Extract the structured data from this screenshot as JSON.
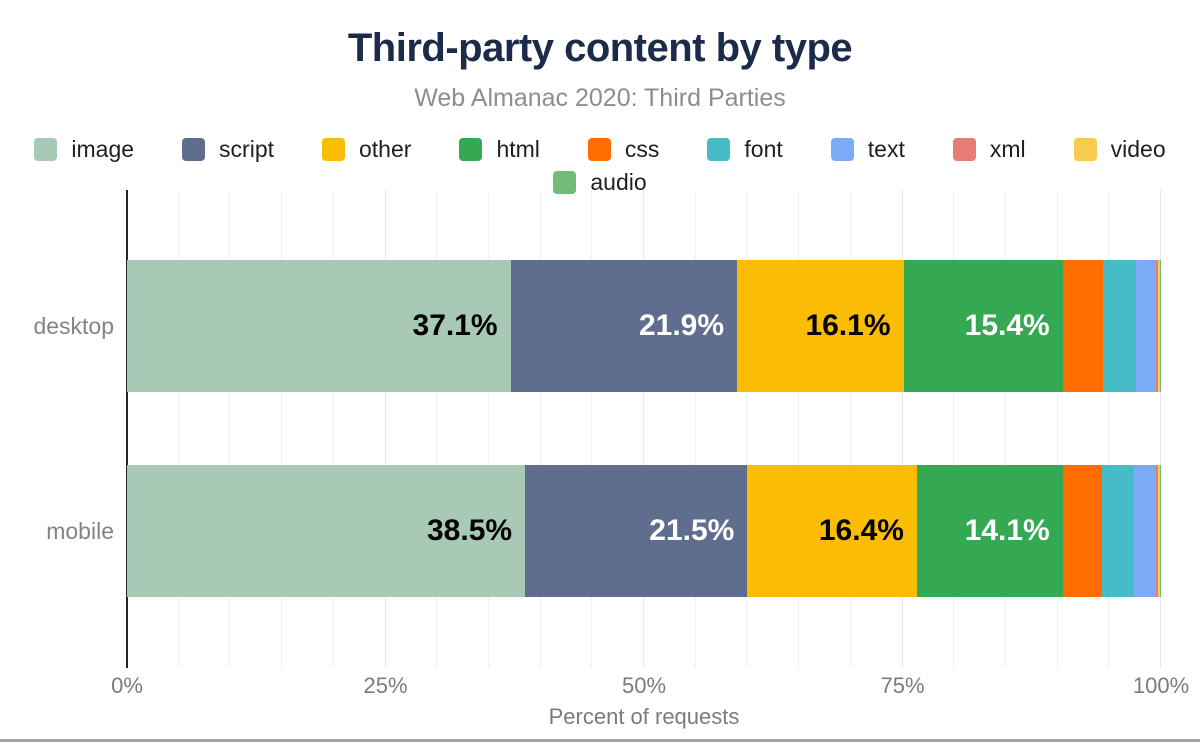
{
  "header": {
    "title": "Third-party content by type",
    "subtitle": "Web Almanac 2020: Third Parties"
  },
  "legend": {
    "rows": [
      [
        "image",
        "script",
        "other",
        "html",
        "css",
        "font",
        "text",
        "xml",
        "video"
      ],
      [
        "audio"
      ]
    ]
  },
  "chart_data": {
    "type": "bar",
    "orientation": "horizontal",
    "stacked": true,
    "title": "Third-party content by type",
    "subtitle": "Web Almanac 2020: Third Parties",
    "xlabel": "Percent of requests",
    "ylabel": "",
    "categories": [
      "desktop",
      "mobile"
    ],
    "series": [
      {
        "name": "image",
        "values": [
          37.1,
          38.5
        ],
        "color": "#a7c9b5",
        "label_color": "#000000"
      },
      {
        "name": "script",
        "values": [
          21.9,
          21.5
        ],
        "color": "#5f6e8e",
        "label_color": "#ffffff"
      },
      {
        "name": "other",
        "values": [
          16.1,
          16.4
        ],
        "color": "#fbbc04",
        "label_color": "#000000"
      },
      {
        "name": "html",
        "values": [
          15.4,
          14.1
        ],
        "color": "#34a853",
        "label_color": "#ffffff"
      },
      {
        "name": "css",
        "values": [
          3.9,
          3.8
        ],
        "color": "#ff6d01",
        "label_color": "#ffffff"
      },
      {
        "name": "font",
        "values": [
          3.2,
          3.1
        ],
        "color": "#46bdc6",
        "label_color": "#ffffff"
      },
      {
        "name": "text",
        "values": [
          1.9,
          2.1
        ],
        "color": "#7baaf7",
        "label_color": "#ffffff"
      },
      {
        "name": "xml",
        "values": [
          0.2,
          0.2
        ],
        "color": "#e67c73",
        "label_color": "#ffffff"
      },
      {
        "name": "video",
        "values": [
          0.2,
          0.2
        ],
        "color": "#f7cb4d",
        "label_color": "#000000"
      },
      {
        "name": "audio",
        "values": [
          0.1,
          0.1
        ],
        "color": "#71bc78",
        "label_color": "#ffffff"
      }
    ],
    "shown_bar_labels": {
      "desktop": [
        "37.1%",
        "21.9%",
        "16.1%",
        "15.4%"
      ],
      "mobile": [
        "38.5%",
        "21.5%",
        "16.4%",
        "14.1%"
      ]
    },
    "label_threshold": 10,
    "xlim": [
      0,
      100
    ],
    "x_ticks": [
      {
        "label": "0%",
        "value": 0
      },
      {
        "label": "25%",
        "value": 25
      },
      {
        "label": "50%",
        "value": 50
      },
      {
        "label": "75%",
        "value": 75
      },
      {
        "label": "100%",
        "value": 100
      }
    ],
    "grid": {
      "on": true,
      "minor_step": 5,
      "major_step": 25
    },
    "legend_position": "top"
  },
  "colors": {
    "title": "#1c2b4a",
    "subtitle": "#8d8d8d",
    "tick_label": "#7b7b7b",
    "category_label": "#848484",
    "axis_line": "#262626",
    "gridline_minor": "#efefef",
    "gridline_major": "#e7e7e7",
    "background": "#ffffff",
    "bottom_rule": "#a6a6a6"
  }
}
